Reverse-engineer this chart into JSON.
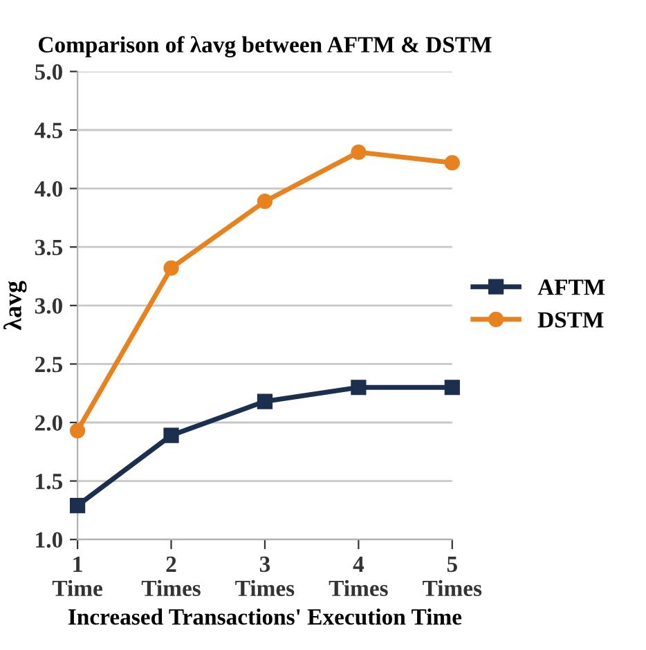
{
  "chart_data": {
    "type": "line",
    "title": "Comparison of λavg between AFTM & DSTM",
    "xlabel": "Increased Transactions' Execution Time",
    "ylabel": "λavg",
    "categories": [
      "1\nTime",
      "2\nTimes",
      "3\nTimes",
      "4\nTimes",
      "5\nTimes"
    ],
    "series": [
      {
        "name": "AFTM",
        "color": "#1c2f4e",
        "marker": "square",
        "values": [
          1.29,
          1.89,
          2.18,
          2.3,
          2.3
        ]
      },
      {
        "name": "DSTM",
        "color": "#e8821e",
        "marker": "circle",
        "values": [
          1.93,
          3.32,
          3.89,
          4.31,
          4.22
        ]
      }
    ],
    "ylim": [
      1.0,
      5.0
    ],
    "yticks": [
      {
        "value": 1.0,
        "label": "1.0"
      },
      {
        "value": 1.5,
        "label": "1.5"
      },
      {
        "value": 2.0,
        "label": "2.0"
      },
      {
        "value": 2.5,
        "label": "2.5"
      },
      {
        "value": 3.0,
        "label": "3.0"
      },
      {
        "value": 3.5,
        "label": "3.5"
      },
      {
        "value": 4.0,
        "label": "4.0"
      },
      {
        "value": 4.5,
        "label": "4.5"
      },
      {
        "value": 5.0,
        "label": "5.0"
      }
    ],
    "grid": "y",
    "legend": "right",
    "line_style": "solid"
  }
}
